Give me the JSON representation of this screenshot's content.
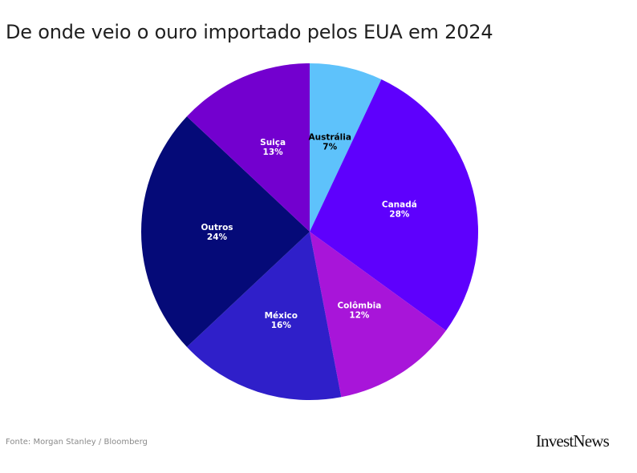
{
  "chart_data": {
    "type": "pie",
    "title": "De onde veio o ouro importado pelos EUA em 2024",
    "slices": [
      {
        "label": "Austrália",
        "value": 7,
        "value_label": "7%",
        "color": "#5ec2fb",
        "text_color": "#000000"
      },
      {
        "label": "Canadá",
        "value": 28,
        "value_label": "28%",
        "color": "#5e00fd",
        "text_color": "#ffffff"
      },
      {
        "label": "Colômbia",
        "value": 12,
        "value_label": "12%",
        "color": "#a815d9",
        "text_color": "#ffffff"
      },
      {
        "label": "México",
        "value": 16,
        "value_label": "16%",
        "color": "#2f1fc9",
        "text_color": "#ffffff"
      },
      {
        "label": "Outros",
        "value": 24,
        "value_label": "24%",
        "color": "#050a78",
        "text_color": "#ffffff"
      },
      {
        "label": "Suiça",
        "value": 13,
        "value_label": "13%",
        "color": "#7300cf",
        "text_color": "#ffffff"
      }
    ]
  },
  "source": "Fonte: Morgan Stanley / Bloomberg",
  "logo": "InvestNews"
}
